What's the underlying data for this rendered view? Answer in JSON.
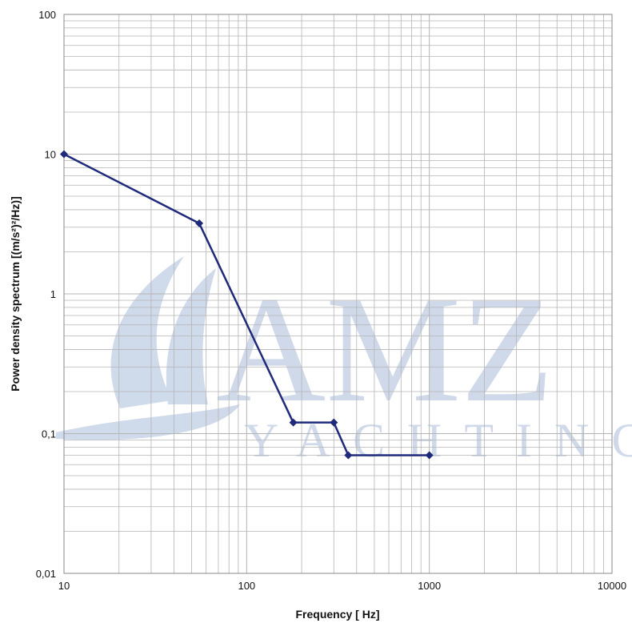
{
  "watermark": {
    "logo_text": "AMZ",
    "logo_subtext": "YACHTING"
  },
  "colors": {
    "series": "#1f2a7a",
    "grid": "#b4b4b4",
    "watermark": "#c7d3e6"
  },
  "chart_data": {
    "type": "line",
    "xscale": "log",
    "yscale": "log",
    "xlim": [
      10,
      10000
    ],
    "ylim": [
      0.01,
      100
    ],
    "xlabel": "Frequency [ Hz]",
    "ylabel": "Power density spectrum [(m/s²)²/Hz)]",
    "x_tick_labels": [
      "10",
      "100",
      "1000",
      "10000"
    ],
    "y_tick_labels": [
      "0,01",
      "0,1",
      "1",
      "10",
      "100"
    ],
    "grid": true,
    "series": [
      {
        "marker": "diamond",
        "x": [
          10,
          55,
          180,
          300,
          360,
          1000
        ],
        "y": [
          10,
          3.2,
          0.12,
          0.12,
          0.07,
          0.07
        ]
      }
    ]
  }
}
